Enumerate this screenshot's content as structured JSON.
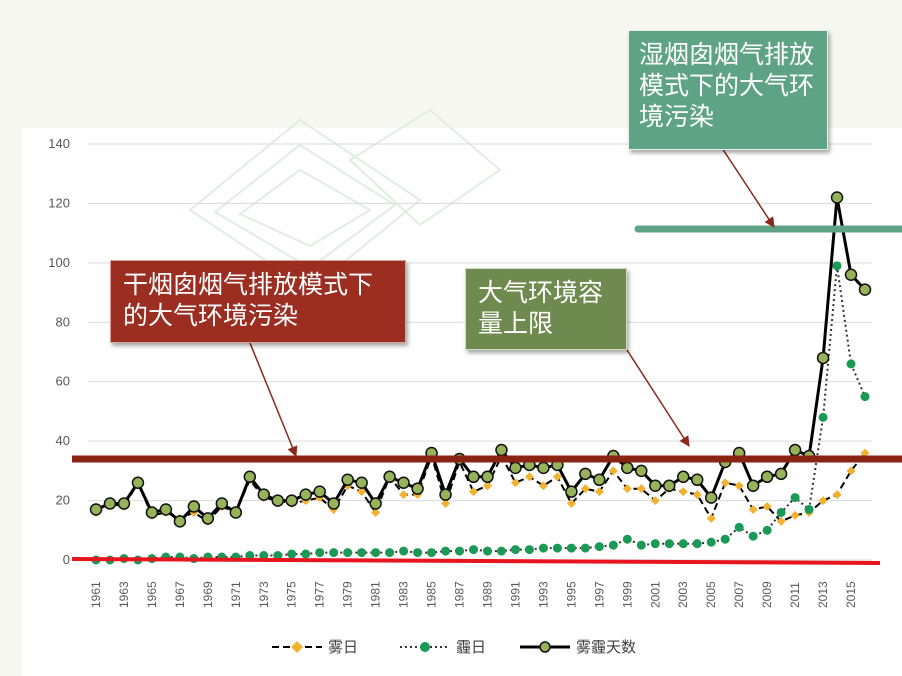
{
  "chart_data": {
    "type": "line",
    "x": [
      1961,
      1962,
      1963,
      1964,
      1965,
      1966,
      1967,
      1968,
      1969,
      1970,
      1971,
      1972,
      1973,
      1974,
      1975,
      1976,
      1977,
      1978,
      1979,
      1980,
      1981,
      1982,
      1983,
      1984,
      1985,
      1986,
      1987,
      1988,
      1989,
      1990,
      1991,
      1992,
      1993,
      1994,
      1995,
      1996,
      1997,
      1998,
      1999,
      2000,
      2001,
      2002,
      2003,
      2004,
      2005,
      2006,
      2007,
      2008,
      2009,
      2010,
      2011,
      2012,
      2013,
      2014,
      2015,
      2016
    ],
    "x_tick_labels": [
      "1961",
      "1963",
      "1965",
      "1967",
      "1969",
      "1971",
      "1973",
      "1975",
      "1977",
      "1979",
      "1981",
      "1983",
      "1985",
      "1987",
      "1989",
      "1991",
      "1993",
      "1995",
      "1997",
      "1999",
      "2001",
      "2003",
      "2005",
      "2007",
      "2009",
      "2011",
      "2013",
      "2015"
    ],
    "y_ticks": [
      0,
      20,
      40,
      60,
      80,
      100,
      120,
      140
    ],
    "ylim": [
      0,
      140
    ],
    "grid": "horizontal",
    "legend_position": "bottom",
    "series": [
      {
        "name": "雾日",
        "style": "dashed",
        "color": "#000000",
        "marker_color": "#f2b230",
        "values": [
          16,
          19,
          18,
          26,
          15,
          16,
          14,
          16,
          13,
          18,
          16,
          27,
          21,
          20,
          19,
          20,
          21,
          17,
          25,
          23,
          16,
          28,
          22,
          22,
          35,
          19,
          33,
          23,
          25,
          35,
          26,
          28,
          25,
          28,
          19,
          24,
          23,
          30,
          24,
          24,
          20,
          24,
          23,
          22,
          14,
          26,
          25,
          17,
          18,
          13,
          15,
          16,
          20,
          22,
          30,
          36
        ]
      },
      {
        "name": "霾日",
        "style": "dotted",
        "color": "#333333",
        "marker_color": "#1a9a55",
        "values": [
          0,
          0,
          0.5,
          0,
          0.5,
          1,
          1,
          0.5,
          1,
          1,
          1,
          1.5,
          1.5,
          1.5,
          2,
          2,
          2.5,
          2.5,
          2.5,
          2.5,
          2.5,
          2.5,
          3,
          2.5,
          2.5,
          3,
          3,
          3.5,
          3,
          3,
          3.5,
          3.5,
          4,
          4,
          4,
          4,
          4.5,
          5,
          7,
          5,
          5.5,
          5.5,
          5.5,
          5.5,
          6,
          7,
          11,
          8,
          10,
          16,
          21,
          17,
          48,
          99,
          66,
          55
        ]
      },
      {
        "name": "雾霾天数",
        "style": "solid",
        "color": "#000000",
        "marker_color": "#97b35a",
        "values": [
          17,
          19,
          19,
          26,
          16,
          17,
          13,
          18,
          14,
          19,
          16,
          28,
          22,
          20,
          20,
          22,
          23,
          19,
          27,
          26,
          19,
          28,
          26,
          24,
          36,
          22,
          34,
          28,
          28,
          37,
          31,
          32,
          31,
          32,
          23,
          29,
          27,
          35,
          31,
          30,
          25,
          25,
          28,
          27,
          21,
          33,
          36,
          25,
          28,
          29,
          37,
          35,
          68,
          122,
          96,
          91
        ]
      }
    ]
  },
  "annotations": {
    "wet_box": "湿烟囱烟气排放模式下的大气环境污染",
    "dry_box": "干烟囱烟气排放模式下的大气环境污染",
    "capacity_box": "大气环境容量上限"
  },
  "colors": {
    "wet_color": "#5fa386",
    "dry_color": "#9b2e21",
    "capacity_color": "#6f8a4e",
    "baseline_red": "#e8141e",
    "capacity_line": "#8b2312",
    "wet_line": "#5fa386"
  }
}
